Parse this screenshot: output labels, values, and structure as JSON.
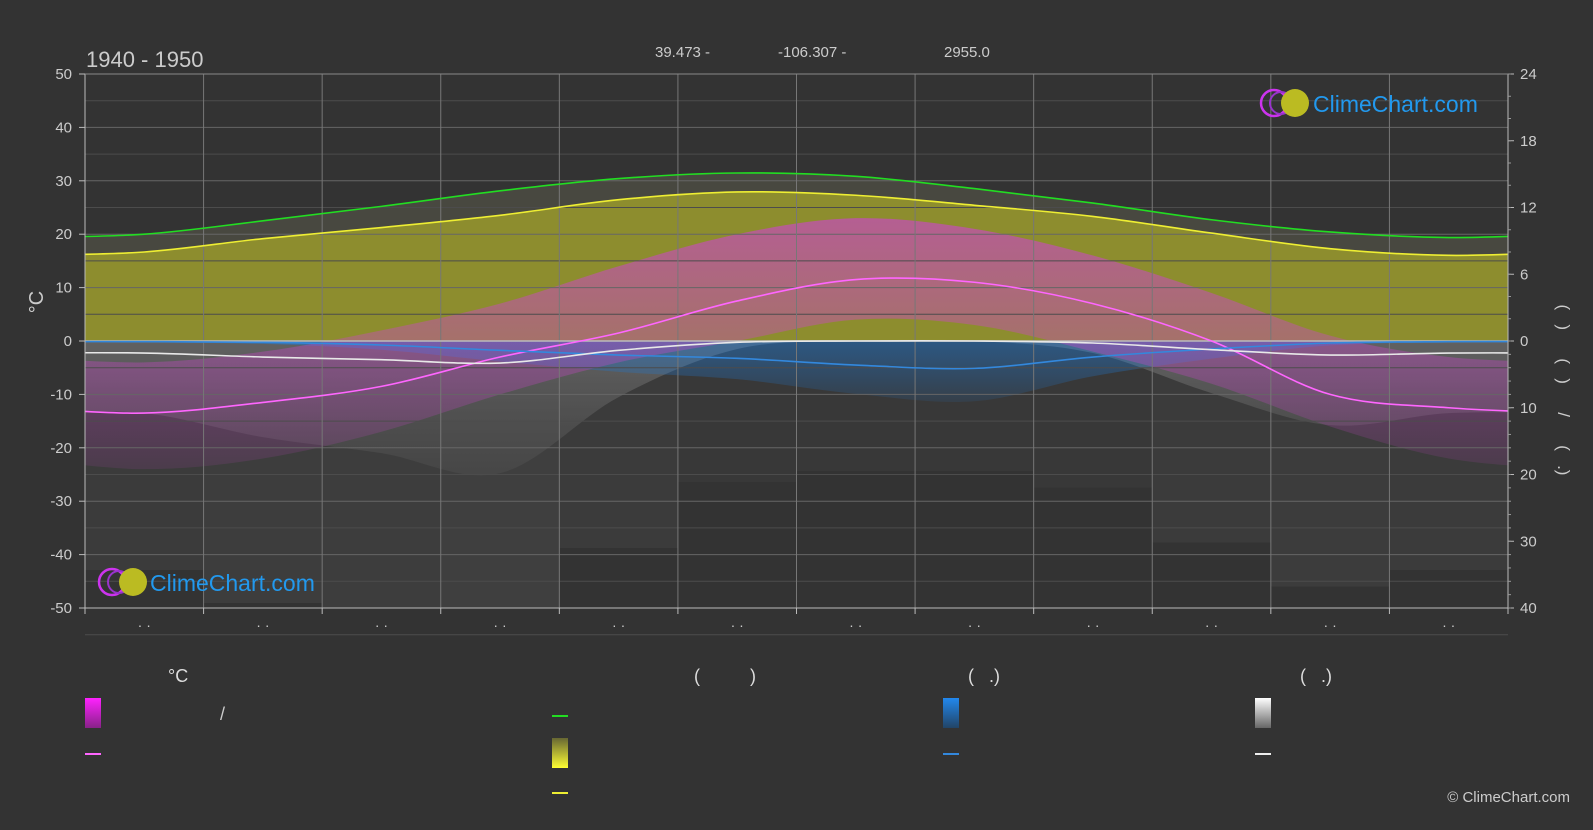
{
  "header": {
    "period": "1940 - 1950",
    "latitude": "39.473 -",
    "longitude": "-106.307 -",
    "elevation": "2955.0"
  },
  "logo_text": "ClimeChart.com",
  "copyright": "© ClimeChart.com",
  "colors": {
    "background": "#333333",
    "daylight": "#22dd22",
    "sunshine": "#eeee33",
    "sunshine_band": "#a0a030",
    "temp_mean": "#ff66ff",
    "temp_band": "#cc44cc",
    "rain": "#3388dd",
    "snow": "#e8e8e8",
    "logo_blue": "#2299ee"
  },
  "legend": {
    "temperature": {
      "heading": "°C",
      "range_label": "/",
      "mean_label": ""
    },
    "sunshine": {
      "heading": "(          )",
      "daylight_label": "",
      "sunshine_label": "",
      "mean_label": ""
    },
    "rain": {
      "heading": "(   .)",
      "daily_label": "",
      "mean_label": ""
    },
    "snow": {
      "heading": "(   .)",
      "daily_label": "",
      "mean_label": ""
    }
  },
  "chart_data": {
    "type": "area",
    "title": "1940 - 1950",
    "ylabel_left": "°C",
    "ylabel_right": "(   )      (   )      /      (   .)",
    "ylim_left": [
      -50,
      50
    ],
    "yticks_left": [
      50,
      40,
      30,
      20,
      10,
      0,
      -10,
      -20,
      -30,
      -40,
      -50
    ],
    "right_axis_top": {
      "unit": "hours",
      "ticks": [
        24,
        18,
        12,
        6,
        0
      ],
      "range": [
        0,
        24
      ]
    },
    "right_axis_bottom": {
      "unit": "mm",
      "ticks": [
        10,
        20,
        30,
        40
      ],
      "range": [
        0,
        40
      ]
    },
    "months": [
      "· ·",
      "· ·",
      "· ·",
      "· ·",
      "· ·",
      "· ·",
      "· ·",
      "· ·",
      "· ·",
      "· ·",
      "· ·",
      "· ·"
    ],
    "grid": true,
    "series": [
      {
        "key": "daylight",
        "unit": "hours",
        "values": [
          9.6,
          10.8,
          12.1,
          13.5,
          14.6,
          15.1,
          14.8,
          13.7,
          12.4,
          10.9,
          9.8,
          9.3
        ]
      },
      {
        "key": "sunshine",
        "unit": "hours",
        "values": [
          8.0,
          9.2,
          10.2,
          11.3,
          12.7,
          13.4,
          13.1,
          12.2,
          11.2,
          9.7,
          8.3,
          7.7
        ]
      },
      {
        "key": "temp_max",
        "unit": "°C",
        "values": [
          -4,
          -2,
          2,
          7,
          14,
          20,
          23,
          21,
          16,
          9,
          1,
          -3
        ]
      },
      {
        "key": "temp_min",
        "unit": "°C",
        "values": [
          -24,
          -22,
          -17,
          -10,
          -4,
          0,
          4,
          3,
          -2,
          -8,
          -16,
          -22
        ]
      },
      {
        "key": "temp_mean",
        "unit": "°C",
        "values": [
          -13.5,
          -11.5,
          -8.5,
          -3.0,
          1.5,
          7.5,
          11.5,
          11.0,
          7.0,
          0.0,
          -10.0,
          -12.5
        ]
      },
      {
        "key": "rain_mean",
        "unit": "mm",
        "values": [
          0.1,
          0.2,
          0.6,
          1.4,
          2.1,
          2.6,
          3.6,
          4.1,
          2.4,
          1.2,
          0.3,
          0.1
        ]
      },
      {
        "key": "snow_mean",
        "unit": "mm",
        "values": [
          1.8,
          2.4,
          2.8,
          3.3,
          1.4,
          0.2,
          0.0,
          0.0,
          0.3,
          1.3,
          2.1,
          1.8
        ]
      }
    ]
  }
}
